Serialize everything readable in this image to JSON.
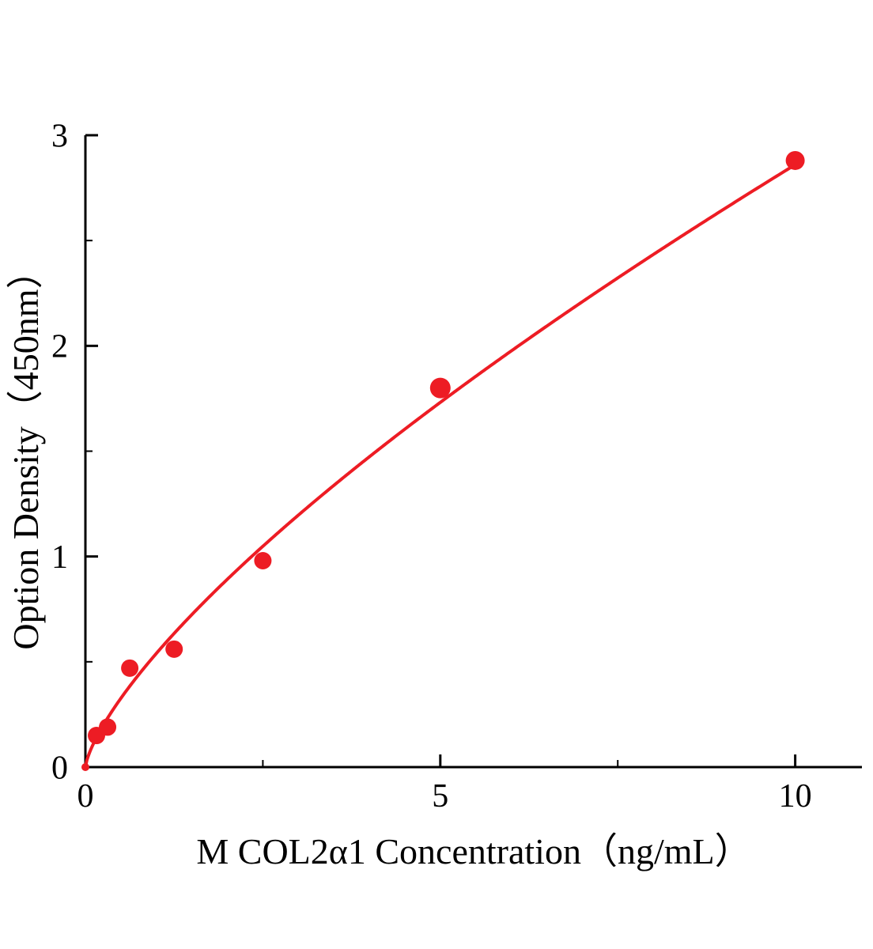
{
  "page": {
    "background": "#ffffff"
  },
  "chart_data": {
    "type": "scatter",
    "title": "",
    "xlabel": "M COL2α1 Concentration（ng/mL）",
    "ylabel": "Option Density（450nm）",
    "xlim": [
      0,
      10.94
    ],
    "ylim": [
      0,
      3
    ],
    "grid": false,
    "legend": null,
    "axis_color": "#000000",
    "xticks": [
      {
        "v": 0,
        "label": "0"
      },
      {
        "v": 5,
        "label": "5"
      },
      {
        "v": 10,
        "label": "10"
      }
    ],
    "xminor": [
      2.5,
      7.5
    ],
    "yticks": [
      {
        "v": 0,
        "label": "0"
      },
      {
        "v": 1,
        "label": "1"
      },
      {
        "v": 2,
        "label": "2"
      },
      {
        "v": 3,
        "label": "3"
      }
    ],
    "yminor": [
      0.5,
      1.5,
      2.5
    ],
    "series": [
      {
        "color": "#ed1c24",
        "marker": "circle",
        "points": [
          {
            "x": 0,
            "y": 0.0,
            "r": 5
          },
          {
            "x": 0.156,
            "y": 0.15
          },
          {
            "x": 0.3125,
            "y": 0.19
          },
          {
            "x": 0.625,
            "y": 0.47
          },
          {
            "x": 1.25,
            "y": 0.56
          },
          {
            "x": 2.5,
            "y": 0.98
          },
          {
            "x": 5,
            "y": 1.8,
            "r": 13
          },
          {
            "x": 10,
            "y": 2.88,
            "r": 12
          }
        ],
        "fit": {
          "type": "power",
          "a": 0.54,
          "b": 0.724,
          "x_start": 0,
          "x_end": 10
        }
      }
    ]
  }
}
